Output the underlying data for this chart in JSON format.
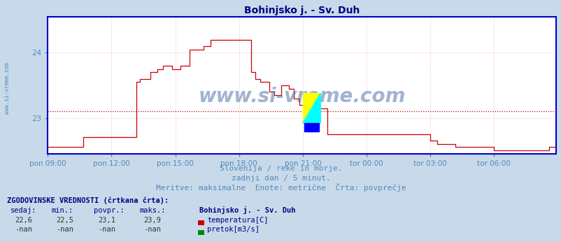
{
  "title": "Bohinjsko j. - Sv. Duh",
  "title_color": "#000080",
  "bg_color": "#c8daea",
  "plot_bg_color": "#ffffff",
  "line_color": "#cc0000",
  "avg_line_color": "#cc0000",
  "axis_color": "#0000cc",
  "grid_color": "#ffaaaa",
  "text_color": "#5588bb",
  "watermark": "www.si-vreme.com",
  "watermark_color": "#5577aa",
  "subtitle1": "Slovenija / reke in morje.",
  "subtitle2": "zadnji dan / 5 minut.",
  "subtitle3": "Meritve: maksimalne  Enote: metrične  Črta: povprečje",
  "footer_header": "ZGODOVINSKE VREDNOSTI (črtkana črta):",
  "col_headers": [
    "sedaj:",
    "min.:",
    "povpr.:",
    "maks.:",
    "Bohinjsko j. - Sv. Duh"
  ],
  "row1_vals": [
    "22,6",
    "22,5",
    "23,1",
    "23,9"
  ],
  "row1_label": "temperatura[C]",
  "row2_vals": [
    "-nan",
    "-nan",
    "-nan",
    "-nan"
  ],
  "row2_label": "pretok[m3/s]",
  "ylim": [
    22.45,
    24.55
  ],
  "yticks": [
    23,
    24
  ],
  "avg_value": 23.1,
  "x_labels": [
    "pon 09:00",
    "pon 12:00",
    "pon 15:00",
    "pon 18:00",
    "pon 21:00",
    "tor 00:00",
    "tor 03:00",
    "tor 06:00"
  ],
  "n_points": 288,
  "temp_icon_color": "#cc0000",
  "pretok_icon_color": "#008800"
}
